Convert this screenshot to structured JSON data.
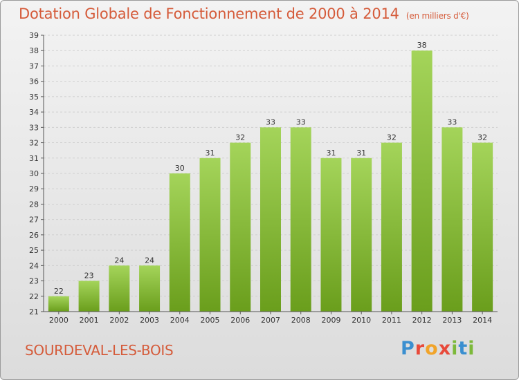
{
  "header": {
    "title": "Dotation Globale de Fonctionnement de 2000 à 2014",
    "unit": "(en milliers d'€)"
  },
  "footer": {
    "commune": "SOURDEVAL-LES-BOIS",
    "logo": [
      "P",
      "r",
      "o",
      "x",
      "i",
      "t",
      "i"
    ]
  },
  "colors": {
    "bar_light": "#a4d45a",
    "bar_dark": "#6a9e1c",
    "title": "#d55b3a",
    "grid": "#cfcfcf"
  },
  "chart_data": {
    "type": "bar",
    "title": "Dotation Globale de Fonctionnement de 2000 à 2014",
    "subtitle": "(en milliers d'€)",
    "categories": [
      "2000",
      "2001",
      "2002",
      "2003",
      "2004",
      "2005",
      "2006",
      "2007",
      "2008",
      "2009",
      "2010",
      "2011",
      "2012",
      "2013",
      "2014"
    ],
    "values": [
      22,
      23,
      24,
      24,
      30,
      31,
      32,
      33,
      33,
      31,
      31,
      32,
      38,
      33,
      32
    ],
    "data_labels": [
      "22",
      "23",
      "24",
      "24",
      "30",
      "31",
      "32",
      "33",
      "33",
      "31",
      "31",
      "32",
      "38",
      "33",
      "32"
    ],
    "ylim": [
      21,
      39
    ],
    "yticks": [
      21,
      22,
      23,
      24,
      25,
      26,
      27,
      28,
      29,
      30,
      31,
      32,
      33,
      34,
      35,
      36,
      37,
      38,
      39
    ],
    "ytick_labels": [
      "21",
      "22",
      "23",
      "24",
      "25",
      "26",
      "27",
      "28",
      "29",
      "30",
      "31",
      "32",
      "33",
      "34",
      "35",
      "36",
      "37",
      "38",
      "39"
    ],
    "grid": true,
    "legend": "none"
  }
}
